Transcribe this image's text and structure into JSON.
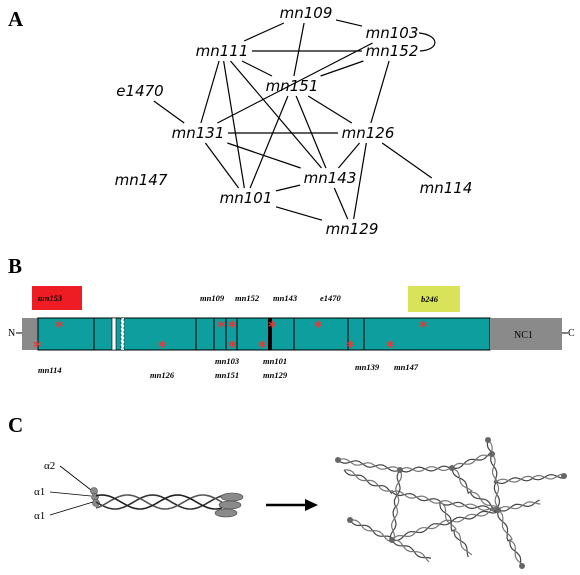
{
  "panels": {
    "a": "A",
    "b": "B",
    "c": "C"
  },
  "network": {
    "nodes": [
      {
        "id": "mn109",
        "label": "mn109"
      },
      {
        "id": "mn103",
        "label": "mn103"
      },
      {
        "id": "mn152",
        "label": "mn152"
      },
      {
        "id": "mn111",
        "label": "mn111"
      },
      {
        "id": "e1470",
        "label": "e1470"
      },
      {
        "id": "mn151",
        "label": "mn151"
      },
      {
        "id": "mn131",
        "label": "mn131"
      },
      {
        "id": "mn126",
        "label": "mn126"
      },
      {
        "id": "mn147",
        "label": "mn147"
      },
      {
        "id": "mn143",
        "label": "mn143"
      },
      {
        "id": "mn114",
        "label": "mn114"
      },
      {
        "id": "mn101",
        "label": "mn101"
      },
      {
        "id": "mn129",
        "label": "mn129"
      }
    ],
    "edges": [
      [
        "mn109",
        "mn111"
      ],
      [
        "mn109",
        "mn103"
      ],
      [
        "mn109",
        "mn151"
      ],
      [
        "mn111",
        "mn152"
      ],
      [
        "mn111",
        "mn151"
      ],
      [
        "mn111",
        "mn131"
      ],
      [
        "mn111",
        "mn101"
      ],
      [
        "mn111",
        "mn143"
      ],
      [
        "mn103",
        "mn131"
      ],
      [
        "mn152",
        "mn126"
      ],
      [
        "mn152",
        "mn151"
      ],
      [
        "e1470",
        "mn131"
      ],
      [
        "mn151",
        "mn101"
      ],
      [
        "mn151",
        "mn126"
      ],
      [
        "mn151",
        "mn143"
      ],
      [
        "mn131",
        "mn126"
      ],
      [
        "mn131",
        "mn101"
      ],
      [
        "mn131",
        "mn143"
      ],
      [
        "mn126",
        "mn143"
      ],
      [
        "mn126",
        "mn129"
      ],
      [
        "mn126",
        "mn114"
      ],
      [
        "mn143",
        "mn101"
      ],
      [
        "mn143",
        "mn129"
      ],
      [
        "mn101",
        "mn129"
      ]
    ]
  },
  "protein": {
    "n_terminal": "N",
    "c_terminal": "C",
    "domain_label": "NC1",
    "colors": {
      "triple_helix": "#0f9e9e",
      "non_collagenous": "#8a8a8a",
      "boxed_red": "#ee1d23",
      "boxed_yellow": "#d9e35a",
      "asterisk": "#e53935"
    },
    "boxed_mutations": [
      {
        "label": "mn153",
        "color": "red"
      },
      {
        "label": "b246",
        "color": "yellow"
      }
    ],
    "mutations_above": [
      "mn109",
      "mn152",
      "mn143",
      "e1470"
    ],
    "mutations_below": [
      "mn114",
      "mn126",
      "mn103",
      "mn151",
      "mn101",
      "mn129",
      "mn139",
      "mn147"
    ]
  },
  "assembly": {
    "chain_labels": [
      "α2",
      "α1",
      "α1"
    ]
  }
}
